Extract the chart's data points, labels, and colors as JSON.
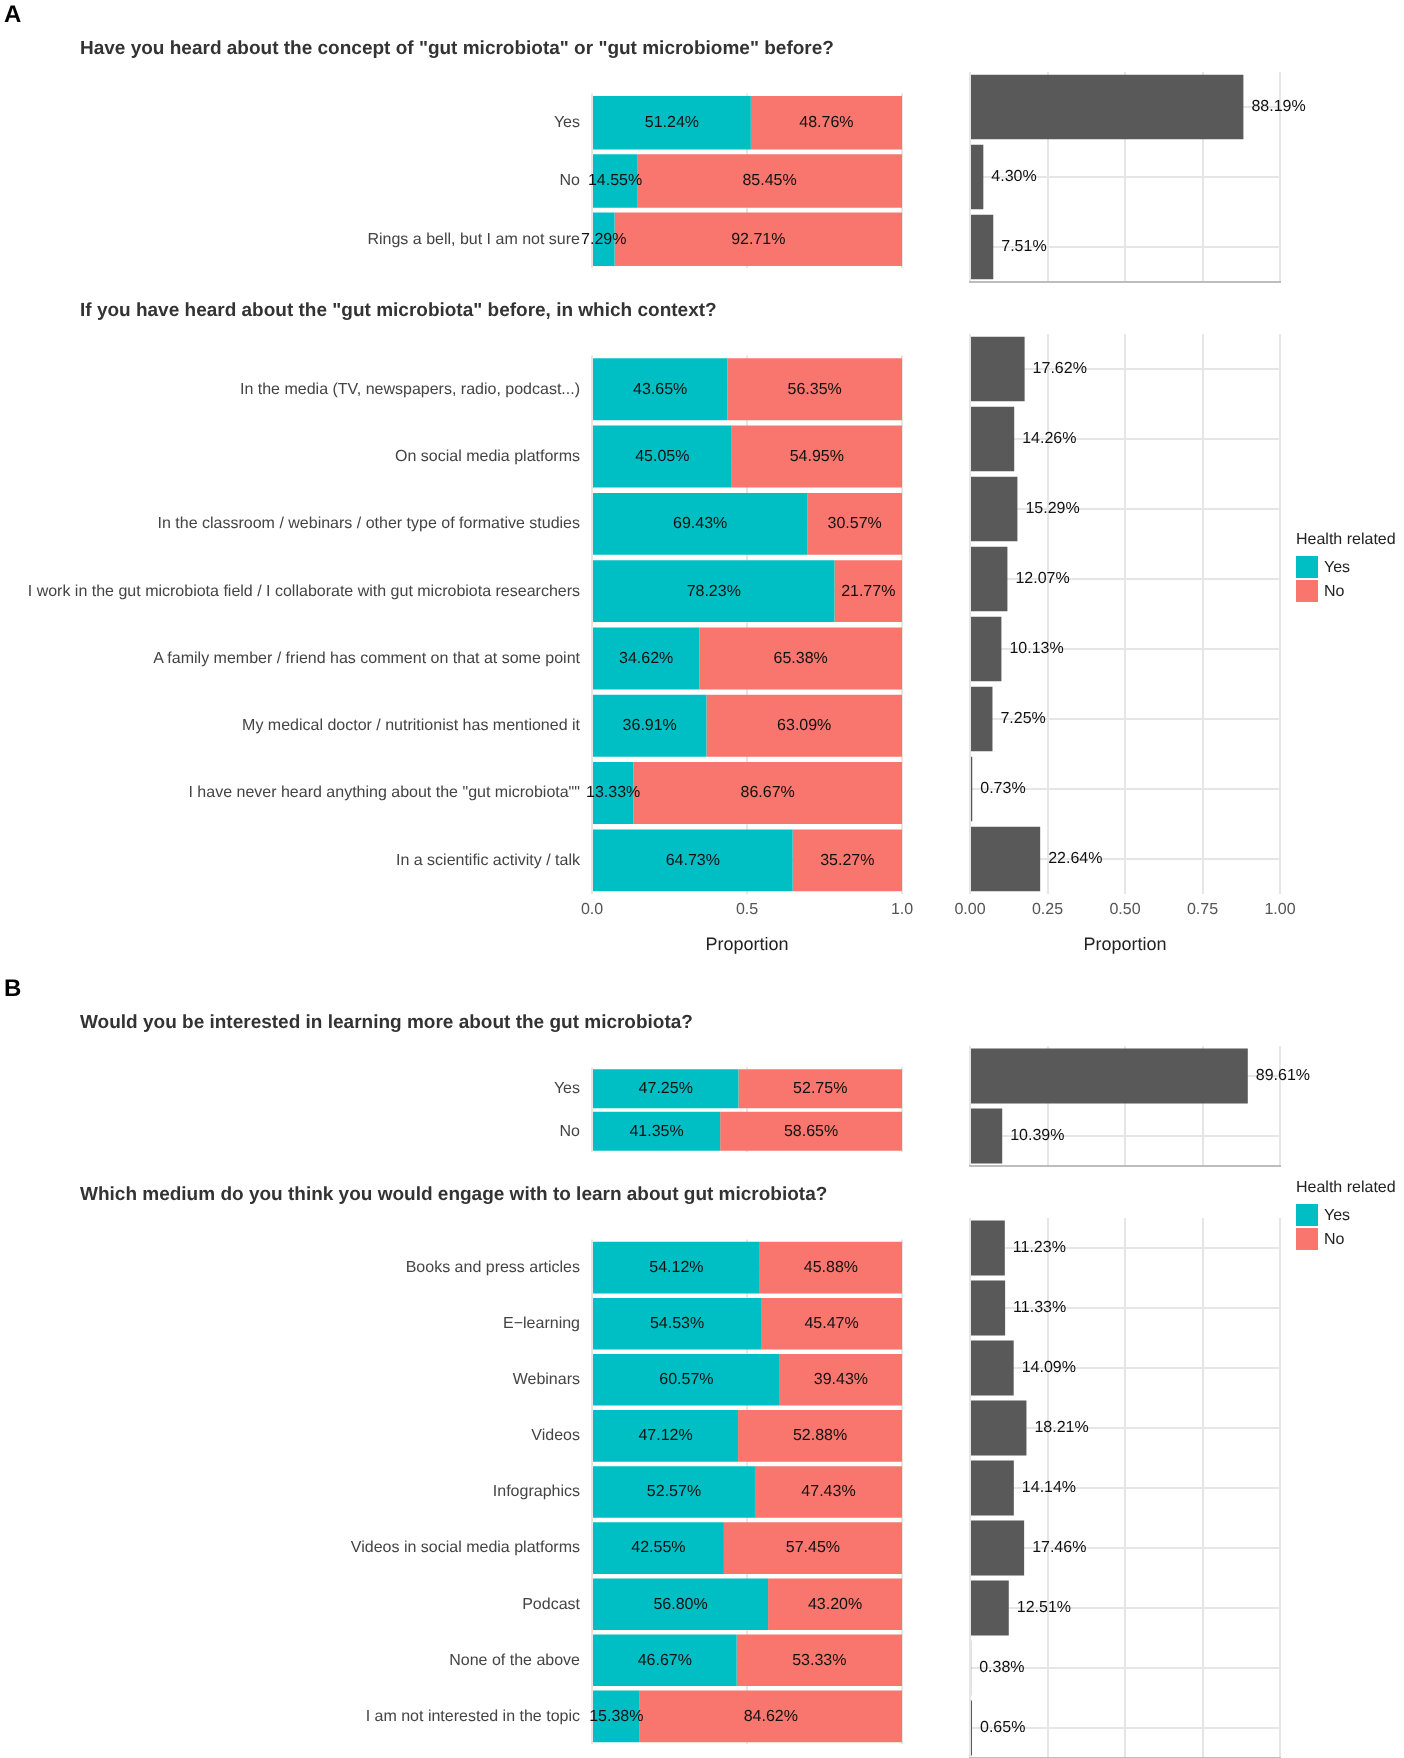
{
  "chart_data": [
    {
      "type": "bar",
      "annotations": [
        "A"
      ],
      "title": "Have you heard about the concept of \"gut microbiota\" or \"gut microbiome\" before?",
      "orientation": "horizontal",
      "stacked": true,
      "categories": [
        "Yes",
        "No",
        "Rings a bell, but I am not sure"
      ],
      "series": [
        {
          "color": "#00bfc4",
          "values": [
            0.5124,
            0.1455,
            0.0729
          ],
          "value_labels": [
            "51.24%",
            "14.55%",
            "7.29%"
          ]
        },
        {
          "color": "#f8766d",
          "values": [
            0.4876,
            0.8545,
            0.9271
          ],
          "value_labels": [
            "48.76%",
            "85.45%",
            "92.71%"
          ]
        }
      ],
      "xlim": [
        0,
        1
      ],
      "xticks": [
        0,
        0.5,
        1
      ],
      "grid": true,
      "tick_labels": "y"
    },
    {
      "type": "bar",
      "orientation": "horizontal",
      "categories": [
        null,
        null,
        null
      ],
      "color": "#595959",
      "values": [
        0.8819,
        0.043,
        0.0751
      ],
      "value_labels": [
        "88.19%",
        "4.30%",
        "7.51%"
      ],
      "xlim": [
        0,
        1
      ],
      "xticks": [
        0,
        0.25,
        0.5,
        0.75,
        1
      ],
      "grid": true,
      "tick_labels": false
    },
    {
      "type": "bar",
      "title": "If you have heard about the \"gut microbiota\" before, in which context?",
      "orientation": "horizontal",
      "stacked": true,
      "categories": [
        "In the media (TV, newspapers, radio, podcast...)",
        "On social media platforms",
        "In the classroom / webinars / other type of formative studies",
        "I work in the gut microbiota field / I collaborate with gut microbiota researchers",
        "A family member / friend has comment on that at some point",
        "My medical doctor / nutritionist has mentioned it",
        "I have never heard anything about the \"gut microbiota\"\"",
        "In a scientific activity / talk"
      ],
      "series": [
        {
          "name": "Yes",
          "color": "#00bfc4",
          "values": [
            0.4365,
            0.4505,
            0.6943,
            0.7823,
            0.3462,
            0.3691,
            0.1333,
            0.6473
          ],
          "value_labels": [
            "43.65%",
            "45.05%",
            "69.43%",
            "78.23%",
            "34.62%",
            "36.91%",
            "13.33%",
            "64.73%"
          ]
        },
        {
          "name": "No",
          "color": "#f8766d",
          "values": [
            0.5635,
            0.5495,
            0.3057,
            0.2177,
            0.6538,
            0.6309,
            0.8667,
            0.3527
          ],
          "value_labels": [
            "56.35%",
            "54.95%",
            "30.57%",
            "21.77%",
            "65.38%",
            "63.09%",
            "86.67%",
            "35.27%"
          ]
        }
      ],
      "xlim": [
        0,
        1
      ],
      "xticks": [
        {
          "value": 0,
          "label": "0.0"
        },
        {
          "value": 0.5,
          "label": "0.5"
        },
        {
          "value": 1,
          "label": "1.0"
        }
      ],
      "xlabel": "Proportion",
      "grid": true,
      "legend": "right",
      "legend_title": "Health related"
    },
    {
      "type": "bar",
      "orientation": "horizontal",
      "categories": [
        null,
        null,
        null,
        null,
        null,
        null,
        null,
        null
      ],
      "color": "#595959",
      "values": [
        0.1762,
        0.1426,
        0.1529,
        0.1207,
        0.1013,
        0.0725,
        0.0073,
        0.2264
      ],
      "value_labels": [
        "17.62%",
        "14.26%",
        "15.29%",
        "12.07%",
        "10.13%",
        "7.25%",
        "0.73%",
        "22.64%"
      ],
      "xlim": [
        0,
        1
      ],
      "xticks": [
        {
          "value": 0,
          "label": "0.00"
        },
        {
          "value": 0.25,
          "label": "0.25"
        },
        {
          "value": 0.5,
          "label": "0.50"
        },
        {
          "value": 0.75,
          "label": "0.75"
        },
        {
          "value": 1,
          "label": "1.00"
        }
      ],
      "xlabel": "Proportion",
      "grid": true,
      "tick_labels": "x"
    },
    {
      "type": "bar",
      "annotations": [
        "B"
      ],
      "title": "Would you be interested in learning more about the gut microbiota?",
      "orientation": "horizontal",
      "stacked": true,
      "categories": [
        "Yes",
        "No"
      ],
      "series": [
        {
          "color": "#00bfc4",
          "values": [
            0.4725,
            0.4135
          ],
          "value_labels": [
            "47.25%",
            "41.35%"
          ]
        },
        {
          "color": "#f8766d",
          "values": [
            0.5275,
            0.5865
          ],
          "value_labels": [
            "52.75%",
            "58.65%"
          ]
        }
      ],
      "xlim": [
        0,
        1
      ],
      "xticks": [
        0,
        0.5,
        1
      ],
      "grid": true,
      "tick_labels": "y"
    },
    {
      "type": "bar",
      "orientation": "horizontal",
      "categories": [
        null,
        null
      ],
      "color": "#595959",
      "values": [
        0.8961,
        0.1039
      ],
      "value_labels": [
        "89.61%",
        "10.39%"
      ],
      "xlim": [
        0,
        1
      ],
      "xticks": [
        0,
        0.25,
        0.5,
        0.75,
        1
      ],
      "grid": true,
      "tick_labels": false
    },
    {
      "type": "bar",
      "title": "Which medium do you think you would engage with to learn about gut microbiota?",
      "orientation": "horizontal",
      "stacked": true,
      "categories": [
        "Books and press articles",
        "E−learning",
        "Webinars",
        "Videos",
        "Infographics",
        "Videos in social media platforms",
        "Podcast",
        "None of the above",
        "I am not interested in the topic"
      ],
      "series": [
        {
          "name": "Yes",
          "color": "#00bfc4",
          "values": [
            0.5412,
            0.5453,
            0.6057,
            0.4712,
            0.5257,
            0.4255,
            0.568,
            0.4667,
            0.1538
          ],
          "value_labels": [
            "54.12%",
            "54.53%",
            "60.57%",
            "47.12%",
            "52.57%",
            "42.55%",
            "56.80%",
            "46.67%",
            "15.38%"
          ]
        },
        {
          "name": "No",
          "color": "#f8766d",
          "values": [
            0.4588,
            0.4547,
            0.3943,
            0.5288,
            0.4743,
            0.5745,
            0.432,
            0.5333,
            0.8462
          ],
          "value_labels": [
            "45.88%",
            "45.47%",
            "39.43%",
            "52.88%",
            "47.43%",
            "57.45%",
            "43.20%",
            "53.33%",
            "84.62%"
          ]
        }
      ],
      "xlim": [
        0,
        1
      ],
      "xticks": [
        0,
        0.5,
        1
      ],
      "grid": true,
      "tick_labels": "y",
      "legend": "right",
      "legend_title": "Health related"
    },
    {
      "type": "bar",
      "orientation": "horizontal",
      "categories": [
        null,
        null,
        null,
        null,
        null,
        null,
        null,
        null,
        null
      ],
      "color": "#595959",
      "values": [
        0.1123,
        0.1133,
        0.1409,
        0.1821,
        0.1414,
        0.1746,
        0.1251,
        0.0038,
        0.0065
      ],
      "value_labels": [
        "11.23%",
        "11.33%",
        "14.09%",
        "18.21%",
        "14.14%",
        "17.46%",
        "12.51%",
        "0.38%",
        "0.65%"
      ],
      "xlim": [
        0,
        1
      ],
      "xticks": [
        0,
        0.25,
        0.5,
        0.75,
        1
      ],
      "grid": true,
      "tick_labels": false
    }
  ]
}
